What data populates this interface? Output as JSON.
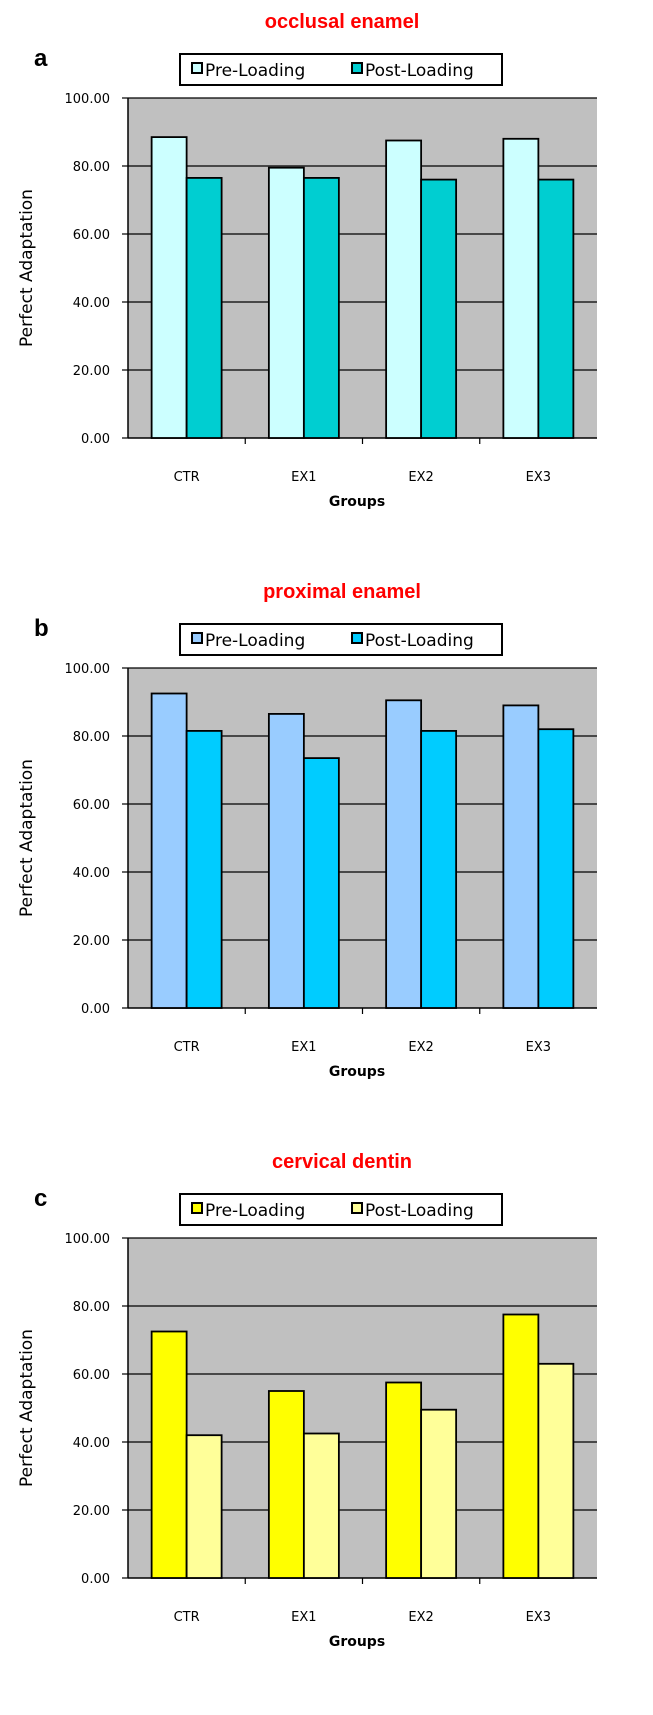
{
  "chart_data": [
    {
      "type": "bar",
      "panel_letter": "a",
      "title": "occlusal enamel",
      "xlabel": "Groups",
      "ylabel": "Perfect Adaptation",
      "ylim": [
        0,
        100
      ],
      "yticks": [
        "0.00",
        "20.00",
        "40.00",
        "60.00",
        "80.00",
        "100.00"
      ],
      "grid": true,
      "legend_position": "top",
      "categories": [
        "CTR",
        "EX1",
        "EX2",
        "EX3"
      ],
      "series": [
        {
          "name": "Pre-Loading",
          "color": "#ccffff",
          "values": [
            88.5,
            79.5,
            87.5,
            88.0
          ]
        },
        {
          "name": "Post-Loading",
          "color": "#00ced1",
          "values": [
            76.5,
            76.5,
            76.0,
            76.0
          ]
        }
      ]
    },
    {
      "type": "bar",
      "panel_letter": "b",
      "title": "proximal enamel",
      "xlabel": "Groups",
      "ylabel": "Perfect Adaptation",
      "ylim": [
        0,
        100
      ],
      "yticks": [
        "0.00",
        "20.00",
        "40.00",
        "60.00",
        "80.00",
        "100.00"
      ],
      "grid": true,
      "legend_position": "top",
      "categories": [
        "CTR",
        "EX1",
        "EX2",
        "EX3"
      ],
      "series": [
        {
          "name": "Pre-Loading",
          "color": "#99ccff",
          "values": [
            92.5,
            86.5,
            90.5,
            89.0
          ]
        },
        {
          "name": "Post-Loading",
          "color": "#00ccff",
          "values": [
            81.5,
            73.5,
            81.5,
            82.0
          ]
        }
      ]
    },
    {
      "type": "bar",
      "panel_letter": "c",
      "title": "cervical dentin",
      "xlabel": "Groups",
      "ylabel": "Perfect Adaptation",
      "ylim": [
        0,
        100
      ],
      "yticks": [
        "0.00",
        "20.00",
        "40.00",
        "60.00",
        "80.00",
        "100.00"
      ],
      "grid": true,
      "legend_position": "top",
      "categories": [
        "CTR",
        "EX1",
        "EX2",
        "EX3"
      ],
      "series": [
        {
          "name": "Pre-Loading",
          "color": "#ffff00",
          "values": [
            72.5,
            55.0,
            57.5,
            77.5
          ]
        },
        {
          "name": "Post-Loading",
          "color": "#ffff99",
          "values": [
            42.0,
            42.5,
            49.5,
            63.0
          ]
        }
      ]
    }
  ],
  "colors": {
    "plot_background": "#c0c0c0",
    "title": "#ff0000",
    "gridline": "#000000"
  }
}
